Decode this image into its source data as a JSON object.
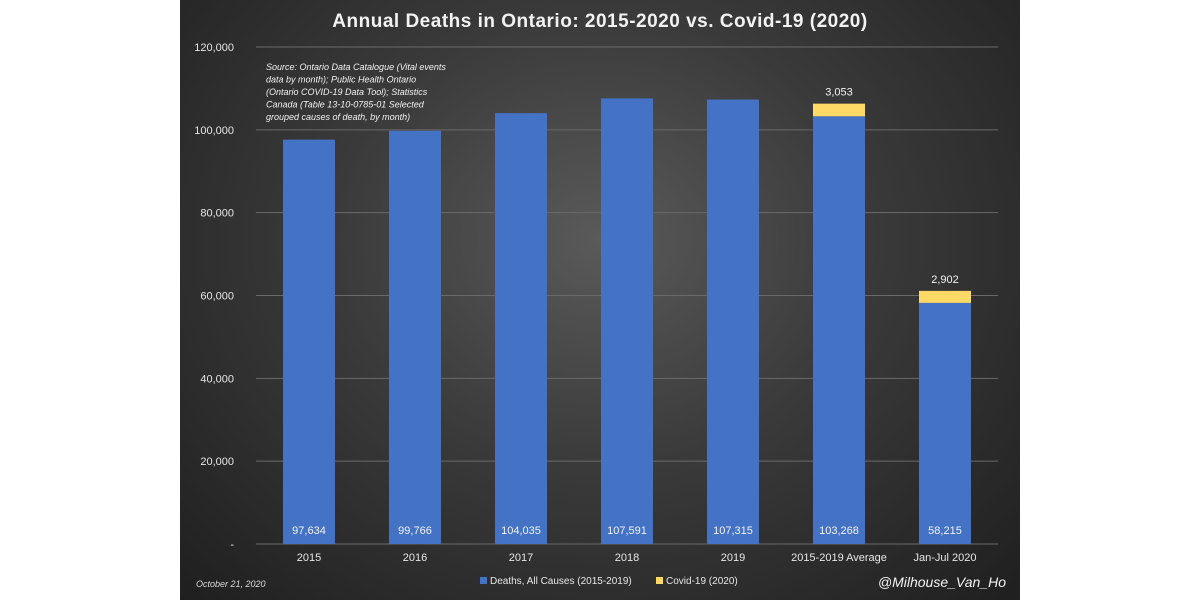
{
  "chart_data": {
    "type": "bar",
    "stacked": true,
    "title": "Annual Deaths in Ontario: 2015-2020 vs. Covid-19 (2020)",
    "categories": [
      "2015",
      "2016",
      "2017",
      "2018",
      "2019",
      "2015-2019 Average",
      "Jan-Jul 2020"
    ],
    "series": [
      {
        "name": "Deaths, All Causes (2015-2019)",
        "color": "#4472c4",
        "values": [
          97634,
          99766,
          104035,
          107591,
          107315,
          103268,
          58215
        ],
        "labels": [
          "97,634",
          "99,766",
          "104,035",
          "107,591",
          "107,315",
          "103,268",
          "58,215"
        ]
      },
      {
        "name": "Covid-19 (2020)",
        "color": "#ffd966",
        "values": [
          0,
          0,
          0,
          0,
          0,
          3053,
          2902
        ],
        "labels": [
          "",
          "",
          "",
          "",
          "",
          "3,053",
          "2,902"
        ]
      }
    ],
    "ylim": [
      0,
      120000
    ],
    "y_ticks": [
      0,
      20000,
      40000,
      60000,
      80000,
      100000,
      120000
    ],
    "y_tick_labels": [
      "-",
      "20,000",
      "40,000",
      "60,000",
      "80,000",
      "100,000",
      "120,000"
    ],
    "grid": true,
    "legend_position": "bottom",
    "source_note": [
      "Source: Ontario Data Catalogue (Vital events",
      "data by month); Public Health Ontario",
      "(Ontario COVID-19 Data Tool); Statistics",
      "Canada (Table 13-10-0785-01 Selected",
      "grouped causes of death, by month)"
    ],
    "date_note": "October 21, 2020",
    "handle": "@Milhouse_Van_Ho"
  }
}
